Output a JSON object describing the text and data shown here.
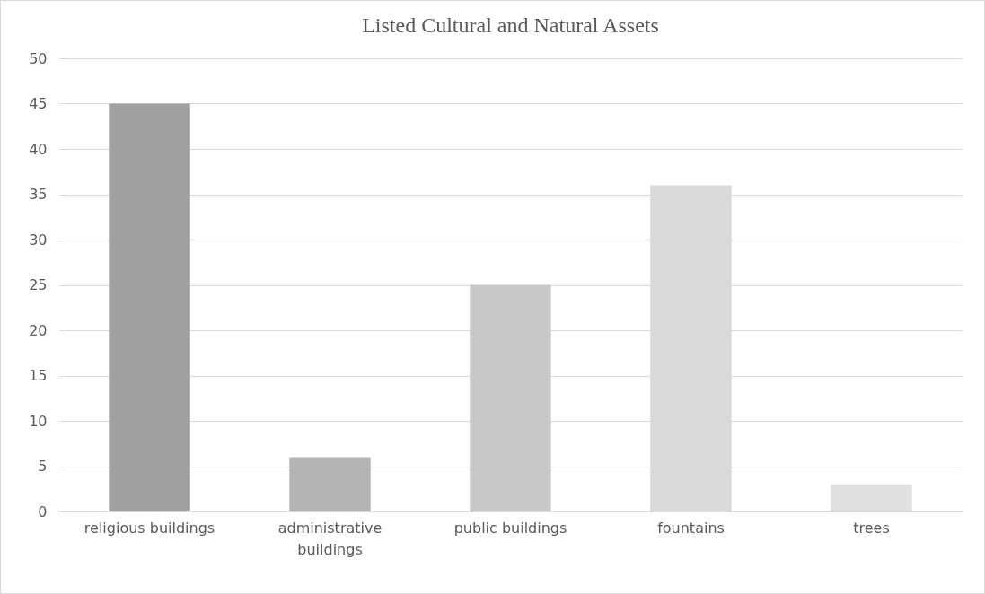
{
  "chart_data": {
    "type": "bar",
    "title": "Listed Cultural and Natural Assets",
    "categories": [
      "religious buildings",
      "administrative buildings",
      "public buildings",
      "fountains",
      "trees"
    ],
    "values": [
      45,
      6,
      25,
      36,
      3
    ],
    "colors": [
      "#a0a0a0",
      "#b4b4b4",
      "#c8c8c8",
      "#d9d9d9",
      "#e0e0e0"
    ],
    "ylim": [
      0,
      50
    ],
    "yticks": [
      0,
      5,
      10,
      15,
      20,
      25,
      30,
      35,
      40,
      45,
      50
    ],
    "grid": "y"
  }
}
